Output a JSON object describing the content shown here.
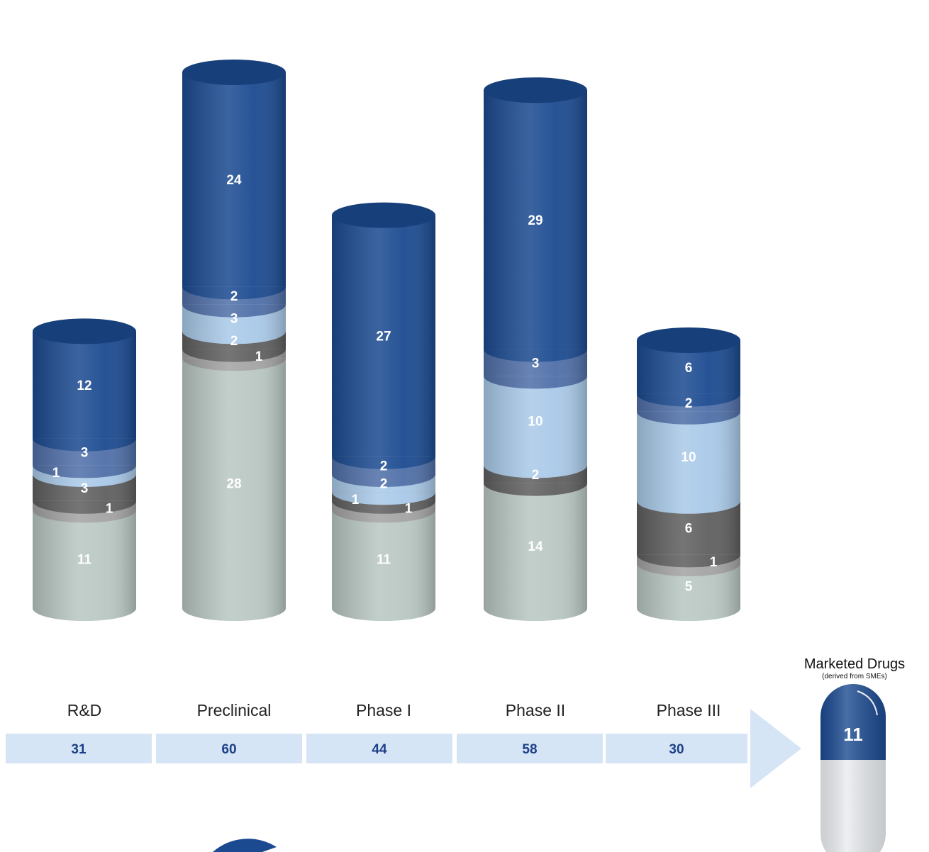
{
  "chart_data": {
    "type": "bar",
    "stacked": true,
    "categories": [
      "R&D",
      "Preclinical",
      "Phase I",
      "Phase II",
      "Phase III"
    ],
    "series": [
      {
        "values": [
          11,
          28,
          11,
          14,
          5
        ],
        "color": "#b9c7c2"
      },
      {
        "values": [
          1,
          1,
          1,
          0,
          1
        ],
        "color": "#a3a3a3"
      },
      {
        "values": [
          3,
          2,
          1,
          2,
          6
        ],
        "color": "#5f5f5f"
      },
      {
        "values": [
          1,
          3,
          2,
          10,
          10
        ],
        "color": "#a9c9e8"
      },
      {
        "values": [
          3,
          2,
          2,
          3,
          2
        ],
        "color": "#4f6fa8"
      },
      {
        "values": [
          12,
          24,
          27,
          29,
          6
        ],
        "color": "#1b4a90"
      }
    ],
    "totals": [
      "31",
      "60",
      "44",
      "58",
      "30"
    ],
    "marketed": {
      "title": "Marketed Drugs",
      "subtitle": "(derived from SMEs)",
      "value": "11"
    },
    "colors": {
      "total_band": "#d5e5f6",
      "total_text": "#1c3f87",
      "arrow": "#d5e5f6",
      "capsule_top": "#1b4a90",
      "capsule_bottom": "#e9ecef"
    }
  }
}
